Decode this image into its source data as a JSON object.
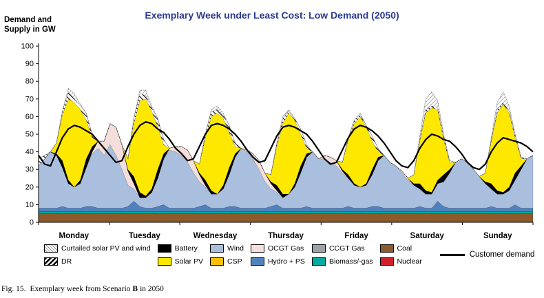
{
  "title_color": "#2b3990",
  "caption": {
    "fig": "Fig. 15.",
    "before": "Exemplary week from Scenario",
    "scenario": "B",
    "after": "in 2050"
  },
  "legend": {
    "demand_label": "Customer demand",
    "items": [
      {
        "label": "Curtailed solar PV and wind",
        "swatch": "hatch-light"
      },
      {
        "label": "DR",
        "swatch": "hatch-dark"
      },
      {
        "label": "Battery",
        "swatch": "#000000"
      },
      {
        "label": "Solar PV",
        "swatch": "#FFE800"
      },
      {
        "label": "Wind",
        "swatch": "#A9BFDD"
      },
      {
        "label": "CSP",
        "swatch": "#FFC000"
      },
      {
        "label": "OCGT Gas",
        "swatch": "#F4DEDB"
      },
      {
        "label": "Hydro + PS",
        "swatch": "#4F81BD"
      },
      {
        "label": "CCGT Gas",
        "swatch": "#9DA2A8"
      },
      {
        "label": "Biomass/-gas",
        "swatch": "#00A99D"
      },
      {
        "label": "Coal",
        "swatch": "#8C5A2B"
      },
      {
        "label": "Nuclear",
        "swatch": "#D02027"
      }
    ]
  },
  "chart_data": {
    "type": "area",
    "stacking": "stacked",
    "title": "Exemplary Week under Least Cost: Low Demand (2050)",
    "ylabel": "Demand and Supply in GW",
    "categories": [
      "Monday",
      "Tuesday",
      "Wednesday",
      "Thursday",
      "Friday",
      "Saturday",
      "Sunday"
    ],
    "x_resolution_hours": 2,
    "ylim": [
      0,
      100
    ],
    "ytick_step": 10,
    "grid": false,
    "legend_position": "bottom",
    "series": [
      {
        "name": "Coal",
        "color": "#8C5A2B",
        "values": 5
      },
      {
        "name": "Nuclear",
        "color": "#D02027",
        "values": 0
      },
      {
        "name": "Biomass/-gas",
        "color": "#00A99D",
        "values": 1
      },
      {
        "name": "CCGT Gas",
        "color": "#9DA2A8",
        "values": 0
      },
      {
        "name": "Hydro + PS",
        "color": "#4F81BD",
        "values": [
          [
            2,
            2,
            2,
            2,
            3,
            2,
            2,
            2,
            3,
            3,
            2,
            2
          ],
          [
            2,
            2,
            2,
            3,
            6,
            3,
            2,
            2,
            3,
            4,
            2,
            2
          ],
          [
            2,
            2,
            2,
            3,
            4,
            2,
            2,
            2,
            3,
            3,
            2,
            2
          ],
          [
            2,
            2,
            2,
            3,
            4,
            2,
            2,
            2,
            2,
            3,
            2,
            2
          ],
          [
            2,
            2,
            2,
            2,
            3,
            2,
            2,
            2,
            3,
            3,
            2,
            2
          ],
          [
            2,
            2,
            2,
            2,
            3,
            2,
            2,
            6,
            3,
            2,
            2,
            2
          ],
          [
            2,
            2,
            2,
            2,
            3,
            2,
            2,
            2,
            4,
            2,
            2,
            2
          ]
        ]
      },
      {
        "name": "Wind",
        "color": "#A9BFDD",
        "values": [
          [
            24,
            28,
            32,
            30,
            22,
            14,
            12,
            14,
            22,
            30,
            34,
            30
          ],
          [
            36,
            30,
            22,
            12,
            7,
            5,
            6,
            9,
            16,
            26,
            33,
            32
          ],
          [
            30,
            26,
            20,
            14,
            10,
            8,
            8,
            11,
            18,
            28,
            34,
            32
          ],
          [
            28,
            22,
            15,
            10,
            7,
            6,
            8,
            12,
            20,
            28,
            32,
            28
          ],
          [
            28,
            26,
            24,
            20,
            16,
            13,
            12,
            13,
            18,
            26,
            30,
            26
          ],
          [
            24,
            20,
            16,
            13,
            10,
            8,
            8,
            10,
            14,
            20,
            26,
            28
          ],
          [
            26,
            22,
            18,
            14,
            10,
            8,
            8,
            10,
            14,
            22,
            28,
            30
          ]
        ]
      },
      {
        "name": "OCGT Gas",
        "color": "#F4DEDB",
        "values": [
          [
            0,
            0,
            0,
            0,
            0,
            0,
            0,
            0,
            0,
            1,
            4,
            8
          ],
          [
            12,
            16,
            14,
            8,
            3,
            0,
            0,
            0,
            0,
            0,
            1,
            3
          ],
          [
            5,
            7,
            7,
            4,
            1,
            0,
            0,
            0,
            0,
            0,
            0,
            1
          ],
          [
            3,
            5,
            5,
            3,
            1,
            0,
            0,
            0,
            0,
            0,
            0,
            0
          ],
          [
            2,
            3,
            3,
            1,
            0,
            0,
            0,
            0,
            0,
            0,
            0,
            0
          ],
          [
            0,
            1,
            1,
            0,
            0,
            0,
            0,
            0,
            0,
            0,
            0,
            0
          ],
          [
            0,
            0,
            0,
            0,
            0,
            0,
            0,
            0,
            0,
            0,
            0,
            0
          ]
        ]
      },
      {
        "name": "CSP",
        "color": "#FFC000",
        "values": 0
      },
      {
        "name": "Battery",
        "color": "#000000",
        "values": [
          [
            0,
            0,
            0,
            1,
            4,
            2,
            0,
            2,
            5,
            3,
            0,
            0
          ],
          [
            0,
            0,
            0,
            1,
            4,
            3,
            1,
            2,
            5,
            3,
            0,
            0
          ],
          [
            0,
            0,
            0,
            1,
            3,
            2,
            0,
            2,
            4,
            2,
            0,
            0
          ],
          [
            0,
            0,
            0,
            1,
            3,
            2,
            0,
            2,
            4,
            2,
            0,
            0
          ],
          [
            0,
            0,
            0,
            1,
            2,
            1,
            0,
            1,
            3,
            2,
            0,
            0
          ],
          [
            0,
            0,
            0,
            1,
            3,
            2,
            1,
            2,
            4,
            2,
            0,
            0
          ],
          [
            0,
            0,
            0,
            1,
            3,
            2,
            1,
            2,
            4,
            2,
            0,
            0
          ]
        ]
      },
      {
        "name": "Solar PV",
        "color": "#FFE800",
        "values": [
          [
            0,
            0,
            0,
            6,
            26,
            46,
            48,
            40,
            22,
            5,
            0,
            0
          ],
          [
            0,
            0,
            0,
            6,
            30,
            52,
            55,
            44,
            24,
            5,
            0,
            0
          ],
          [
            0,
            0,
            0,
            5,
            24,
            42,
            46,
            38,
            20,
            4,
            0,
            0
          ],
          [
            0,
            0,
            0,
            4,
            22,
            40,
            46,
            36,
            18,
            3,
            0,
            0
          ],
          [
            0,
            0,
            0,
            4,
            20,
            34,
            40,
            32,
            16,
            3,
            0,
            0
          ],
          [
            0,
            0,
            0,
            5,
            24,
            44,
            48,
            40,
            20,
            4,
            0,
            0
          ],
          [
            0,
            0,
            0,
            5,
            24,
            44,
            50,
            42,
            20,
            4,
            0,
            0
          ]
        ]
      },
      {
        "name": "DR",
        "pattern": "pat-dr",
        "values": [
          [
            4,
            2,
            0,
            0,
            2,
            4,
            2,
            2,
            4,
            2,
            0,
            0
          ],
          [
            0,
            0,
            0,
            0,
            3,
            4,
            2,
            2,
            5,
            3,
            0,
            0
          ],
          [
            0,
            0,
            0,
            0,
            2,
            3,
            2,
            2,
            4,
            2,
            0,
            0
          ],
          [
            0,
            0,
            0,
            0,
            2,
            3,
            1,
            1,
            3,
            2,
            0,
            0
          ],
          [
            0,
            0,
            0,
            0,
            1,
            2,
            1,
            1,
            3,
            2,
            0,
            0
          ],
          [
            0,
            0,
            0,
            0,
            1,
            2,
            1,
            1,
            2,
            1,
            0,
            0
          ],
          [
            0,
            0,
            0,
            0,
            1,
            2,
            1,
            1,
            2,
            1,
            0,
            0
          ]
        ]
      },
      {
        "name": "Curtailed solar PV and wind",
        "pattern": "pat-curtailed",
        "values": [
          [
            0,
            0,
            0,
            0,
            0,
            2,
            3,
            1,
            0,
            0,
            0,
            0
          ],
          [
            0,
            0,
            0,
            0,
            0,
            2,
            3,
            1,
            0,
            0,
            0,
            0
          ],
          [
            0,
            0,
            0,
            0,
            0,
            1,
            2,
            1,
            0,
            0,
            0,
            0
          ],
          [
            0,
            0,
            0,
            0,
            0,
            1,
            1,
            0,
            0,
            0,
            0,
            0
          ],
          [
            0,
            0,
            0,
            0,
            0,
            0,
            1,
            0,
            0,
            0,
            0,
            0
          ],
          [
            0,
            0,
            0,
            0,
            2,
            6,
            8,
            4,
            1,
            0,
            0,
            0
          ],
          [
            0,
            0,
            0,
            0,
            1,
            4,
            6,
            3,
            0,
            0,
            0,
            0
          ]
        ]
      }
    ],
    "demand": {
      "name": "Customer demand",
      "color": "#000000",
      "values": [
        [
          38,
          33,
          32,
          40,
          48,
          53,
          55,
          54,
          52,
          50,
          46,
          42
        ],
        [
          38,
          34,
          35,
          43,
          50,
          55,
          57,
          56,
          53,
          51,
          47,
          42
        ],
        [
          39,
          35,
          36,
          43,
          50,
          55,
          56,
          55,
          53,
          50,
          46,
          41
        ],
        [
          37,
          34,
          35,
          42,
          49,
          54,
          55,
          54,
          52,
          50,
          46,
          41
        ],
        [
          36,
          33,
          34,
          41,
          48,
          53,
          55,
          54,
          52,
          49,
          45,
          40
        ],
        [
          35,
          32,
          31,
          35,
          42,
          47,
          50,
          49,
          47,
          46,
          43,
          39
        ],
        [
          34,
          31,
          30,
          33,
          40,
          45,
          48,
          47,
          46,
          45,
          43,
          40
        ]
      ]
    }
  }
}
